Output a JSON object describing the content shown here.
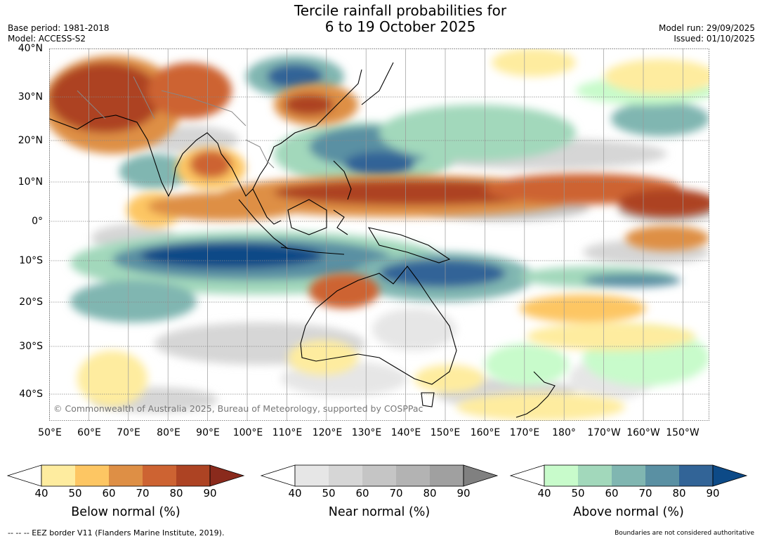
{
  "title_line1": "Tercile rainfall probabilities for",
  "title_line2": "6 to 19 October 2025",
  "base_period": "Base period: 1981-2018",
  "model": "Model: ACCESS-S2",
  "model_run": "Model run: 29/09/2025",
  "issued": "Issued: 01/10/2025",
  "lat_labels": [
    "40°N",
    "30°N",
    "20°N",
    "10°N",
    "0°",
    "10°S",
    "20°S",
    "30°S",
    "40°S"
  ],
  "lon_labels": [
    "50°E",
    "60°E",
    "70°E",
    "80°E",
    "90°E",
    "100°E",
    "110°E",
    "120°E",
    "130°E",
    "140°E",
    "150°E",
    "160°E",
    "170°E",
    "180°",
    "170°W",
    "160°W",
    "150°W"
  ],
  "copyright": "© Commonwealth of Australia 2025, Bureau of Meteorology, supported by COSPPac",
  "legends": [
    {
      "name": "below",
      "title": "Below normal (%)",
      "ticks": [
        "40",
        "50",
        "60",
        "70",
        "80",
        "90"
      ],
      "colors": [
        "#ffffff",
        "#feec9f",
        "#fdc663",
        "#de8f45",
        "#cd6332",
        "#ad4323",
        "#8a2a1c"
      ]
    },
    {
      "name": "near",
      "title": "Near normal (%)",
      "ticks": [
        "40",
        "50",
        "60",
        "70",
        "80",
        "90"
      ],
      "colors": [
        "#ffffff",
        "#e6e6e6",
        "#d6d6d6",
        "#c5c5c5",
        "#b3b3b3",
        "#a0a0a0",
        "#808080"
      ]
    },
    {
      "name": "above",
      "title": "Above normal (%)",
      "ticks": [
        "40",
        "50",
        "60",
        "70",
        "80",
        "90"
      ],
      "colors": [
        "#ffffff",
        "#c8fbcb",
        "#a2d8bb",
        "#80b6b1",
        "#5a90a3",
        "#326497",
        "#0d4a87"
      ]
    }
  ],
  "eez_note": "--  --  -- EEZ border V11 (Flanders Marine Institute, 2019).",
  "boundary_note": "Boundaries are not considered authoritative"
}
